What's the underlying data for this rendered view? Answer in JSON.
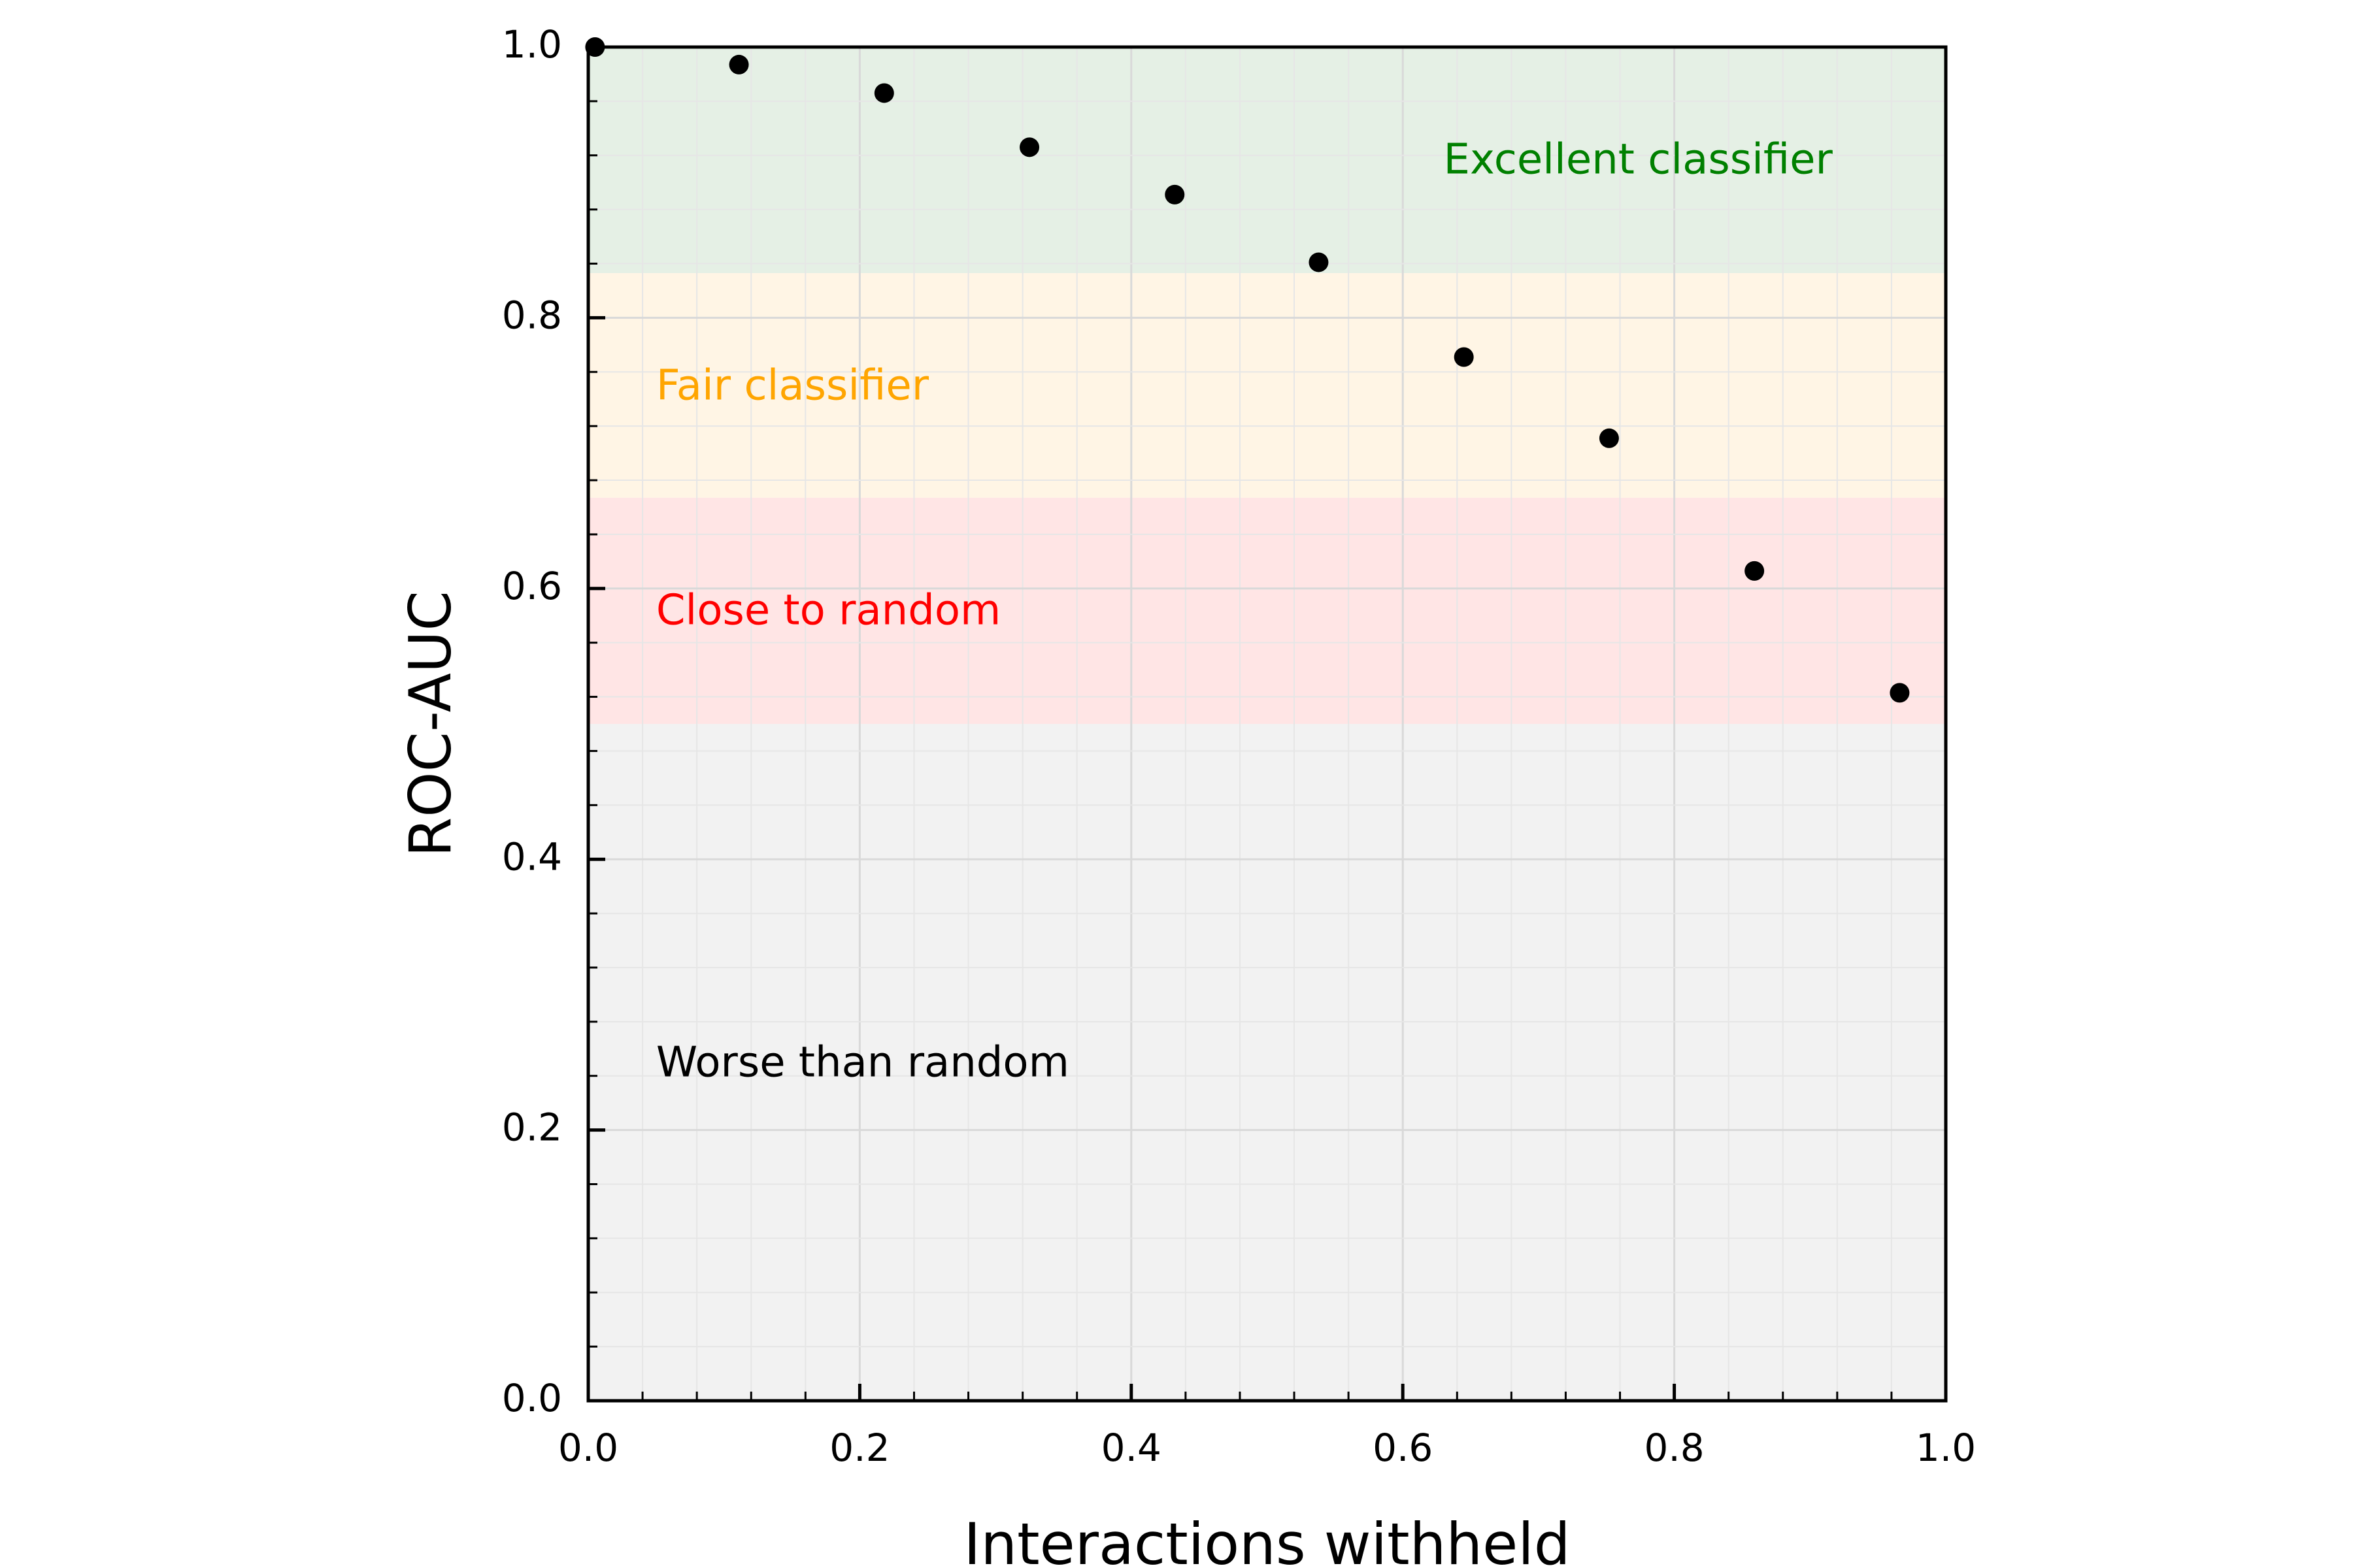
{
  "chart_data": {
    "type": "scatter",
    "xlabel": "Interactions withheld",
    "ylabel": "ROC-AUC",
    "xlim": [
      0.0,
      1.0
    ],
    "ylim": [
      0.0,
      1.0
    ],
    "xticks": [
      "0.0",
      "0.2",
      "0.4",
      "0.6",
      "0.8",
      "1.0"
    ],
    "yticks": [
      "0.0",
      "0.2",
      "0.4",
      "0.6",
      "0.8",
      "1.0"
    ],
    "grid": true,
    "legend": "none",
    "points": [
      {
        "x": 0.005,
        "y": 1.0
      },
      {
        "x": 0.111,
        "y": 0.987
      },
      {
        "x": 0.218,
        "y": 0.966
      },
      {
        "x": 0.325,
        "y": 0.926
      },
      {
        "x": 0.432,
        "y": 0.891
      },
      {
        "x": 0.538,
        "y": 0.841
      },
      {
        "x": 0.645,
        "y": 0.771
      },
      {
        "x": 0.752,
        "y": 0.711
      },
      {
        "x": 0.859,
        "y": 0.613
      },
      {
        "x": 0.966,
        "y": 0.523
      }
    ],
    "point_color": "#000000",
    "bands": [
      {
        "label": "Excellent classifier",
        "y0": 0.833,
        "y1": 1.0,
        "fill": "#e5f0e5",
        "text_color": "#008000",
        "label_x": 0.63,
        "label_y": 0.915
      },
      {
        "label": "Fair classifier",
        "y0": 0.667,
        "y1": 0.833,
        "fill": "#fff5e5",
        "text_color": "#ffa500",
        "label_x": 0.05,
        "label_y": 0.748
      },
      {
        "label": "Close to random",
        "y0": 0.5,
        "y1": 0.667,
        "fill": "#ffe5e5",
        "text_color": "#ff0000",
        "label_x": 0.05,
        "label_y": 0.582
      },
      {
        "label": "Worse than random",
        "y0": 0.0,
        "y1": 0.5,
        "fill": "#f2f2f2",
        "text_color": "#000000",
        "label_x": 0.05,
        "label_y": 0.248
      }
    ]
  }
}
